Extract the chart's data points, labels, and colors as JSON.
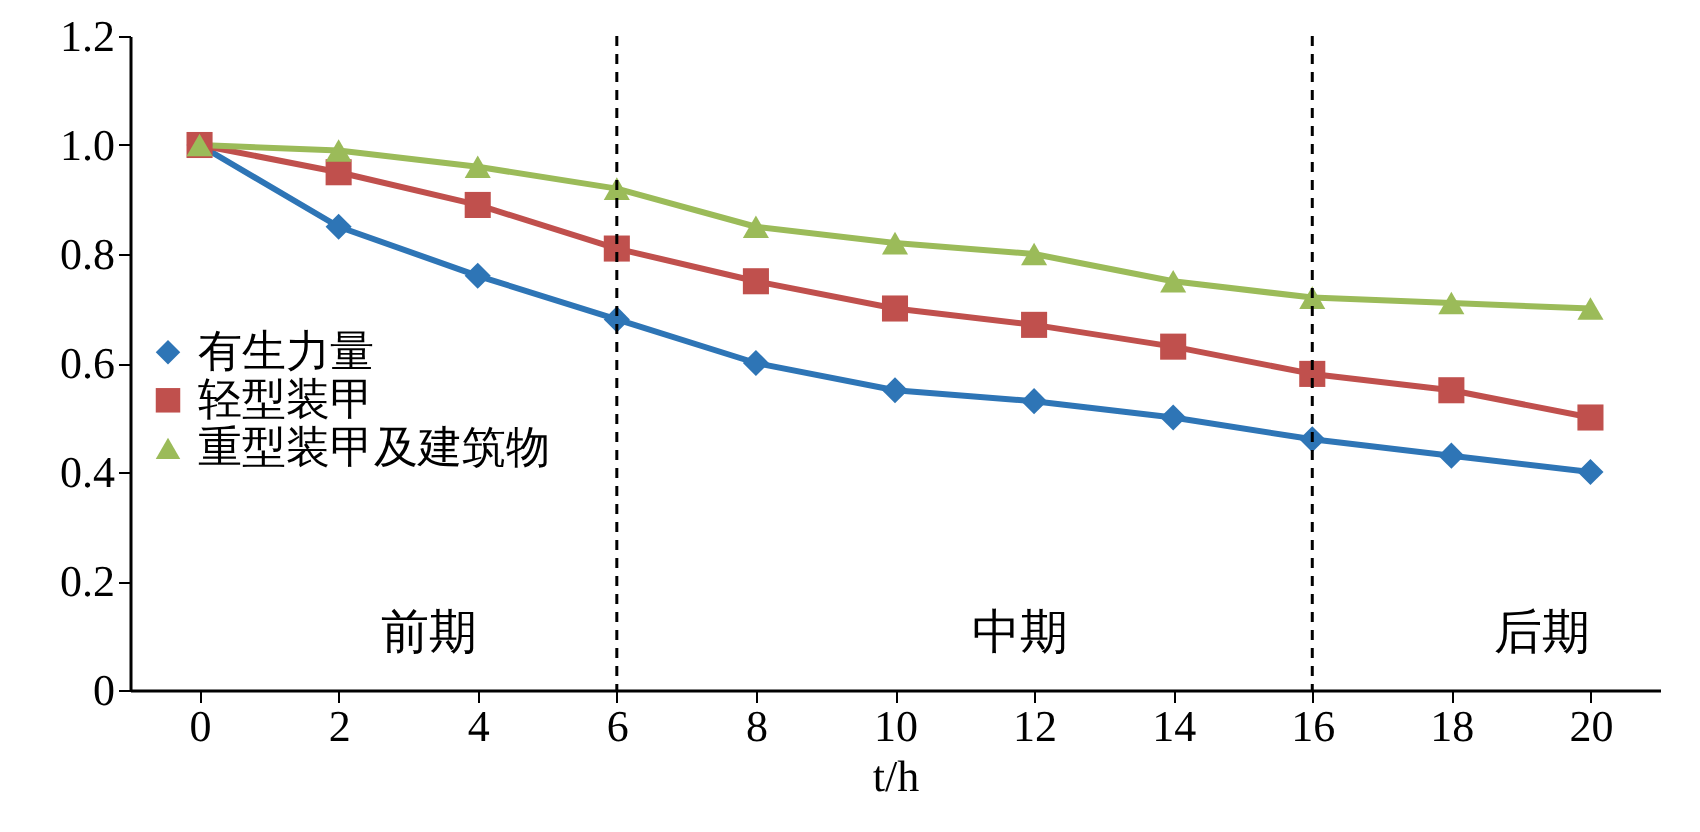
{
  "chart_data": {
    "type": "line",
    "xlabel": "t/h",
    "x": [
      0,
      2,
      4,
      6,
      8,
      10,
      12,
      14,
      16,
      18,
      20
    ],
    "series": [
      {
        "name": "有生力量",
        "color": "#2e75b6",
        "marker": "diamond",
        "values": [
          1.0,
          0.85,
          0.76,
          0.68,
          0.6,
          0.55,
          0.53,
          0.5,
          0.46,
          0.43,
          0.4
        ]
      },
      {
        "name": "轻型装甲",
        "color": "#c0504d",
        "marker": "square",
        "values": [
          1.0,
          0.95,
          0.89,
          0.81,
          0.75,
          0.7,
          0.67,
          0.63,
          0.58,
          0.55,
          0.5
        ]
      },
      {
        "name": "重型装甲及建筑物",
        "color": "#9bbb59",
        "marker": "triangle",
        "values": [
          1.0,
          0.99,
          0.96,
          0.92,
          0.85,
          0.82,
          0.8,
          0.75,
          0.72,
          0.71,
          0.7
        ]
      }
    ],
    "xlim": [
      -1,
      21
    ],
    "xticks": [
      0,
      2,
      4,
      6,
      8,
      10,
      12,
      14,
      16,
      18,
      20
    ],
    "ylim": [
      0,
      1.2
    ],
    "yticks": [
      {
        "value": 0,
        "label": "0"
      },
      0.2,
      0.4,
      0.6,
      0.8,
      {
        "value": 1,
        "label": "1.0"
      },
      1.2
    ],
    "ref_lines": [
      {
        "axis": "x",
        "value": 6,
        "color": "#000000",
        "line_style": "dashed"
      },
      {
        "axis": "x",
        "value": 16,
        "color": "#000000",
        "line_style": "dashed"
      }
    ],
    "annotations": [
      "前期",
      "中期",
      "后期"
    ],
    "grid": false,
    "legend": "left",
    "line_style": "solid"
  }
}
